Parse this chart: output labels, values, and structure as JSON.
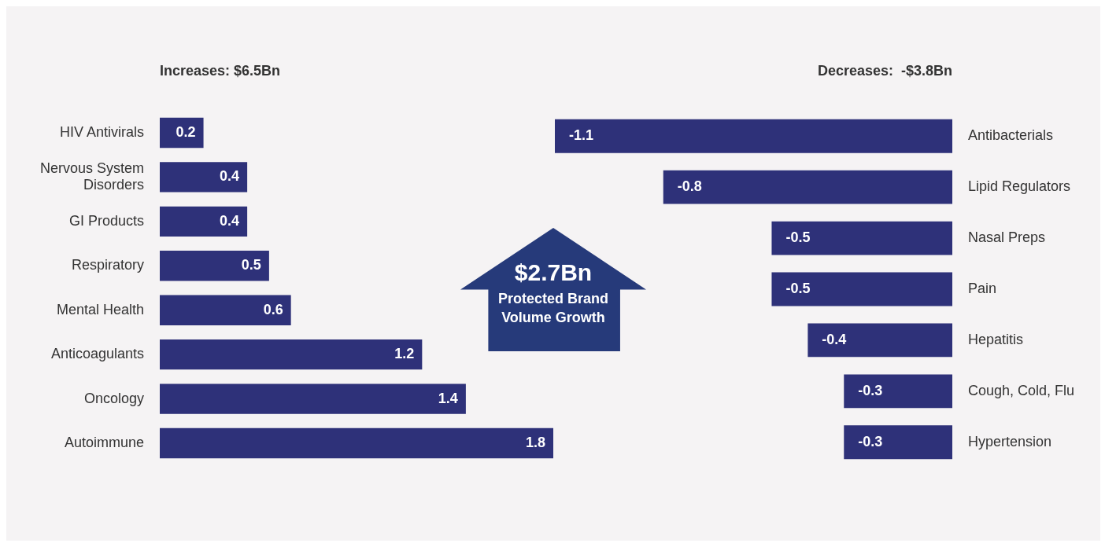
{
  "chart_data": [
    {
      "type": "bar",
      "orientation": "horizontal",
      "title": "Increases: $6.5Bn",
      "categories": [
        "HIV Antivirals",
        "Nervous System Disorders",
        "GI Products",
        "Respiratory",
        "Mental Health",
        "Anticoagulants",
        "Oncology",
        "Autoimmune"
      ],
      "values": [
        0.2,
        0.4,
        0.4,
        0.5,
        0.6,
        1.2,
        1.4,
        1.8
      ],
      "color": "#2e3179",
      "data_labels": true
    },
    {
      "type": "bar",
      "orientation": "horizontal",
      "title": "Decreases:  -$3.8Bn",
      "categories": [
        "Antibacterials",
        "Lipid Regulators",
        "Nasal Preps",
        "Pain",
        "Hepatitis",
        "Cough, Cold, Flu",
        "Hypertension"
      ],
      "values": [
        -1.1,
        -0.8,
        -0.5,
        -0.5,
        -0.4,
        -0.3,
        -0.3
      ],
      "color": "#2e3179",
      "data_labels": true
    },
    {
      "type": "other",
      "title": "$2.7Bn",
      "subtitle": "Protected Brand Volume Growth"
    }
  ]
}
